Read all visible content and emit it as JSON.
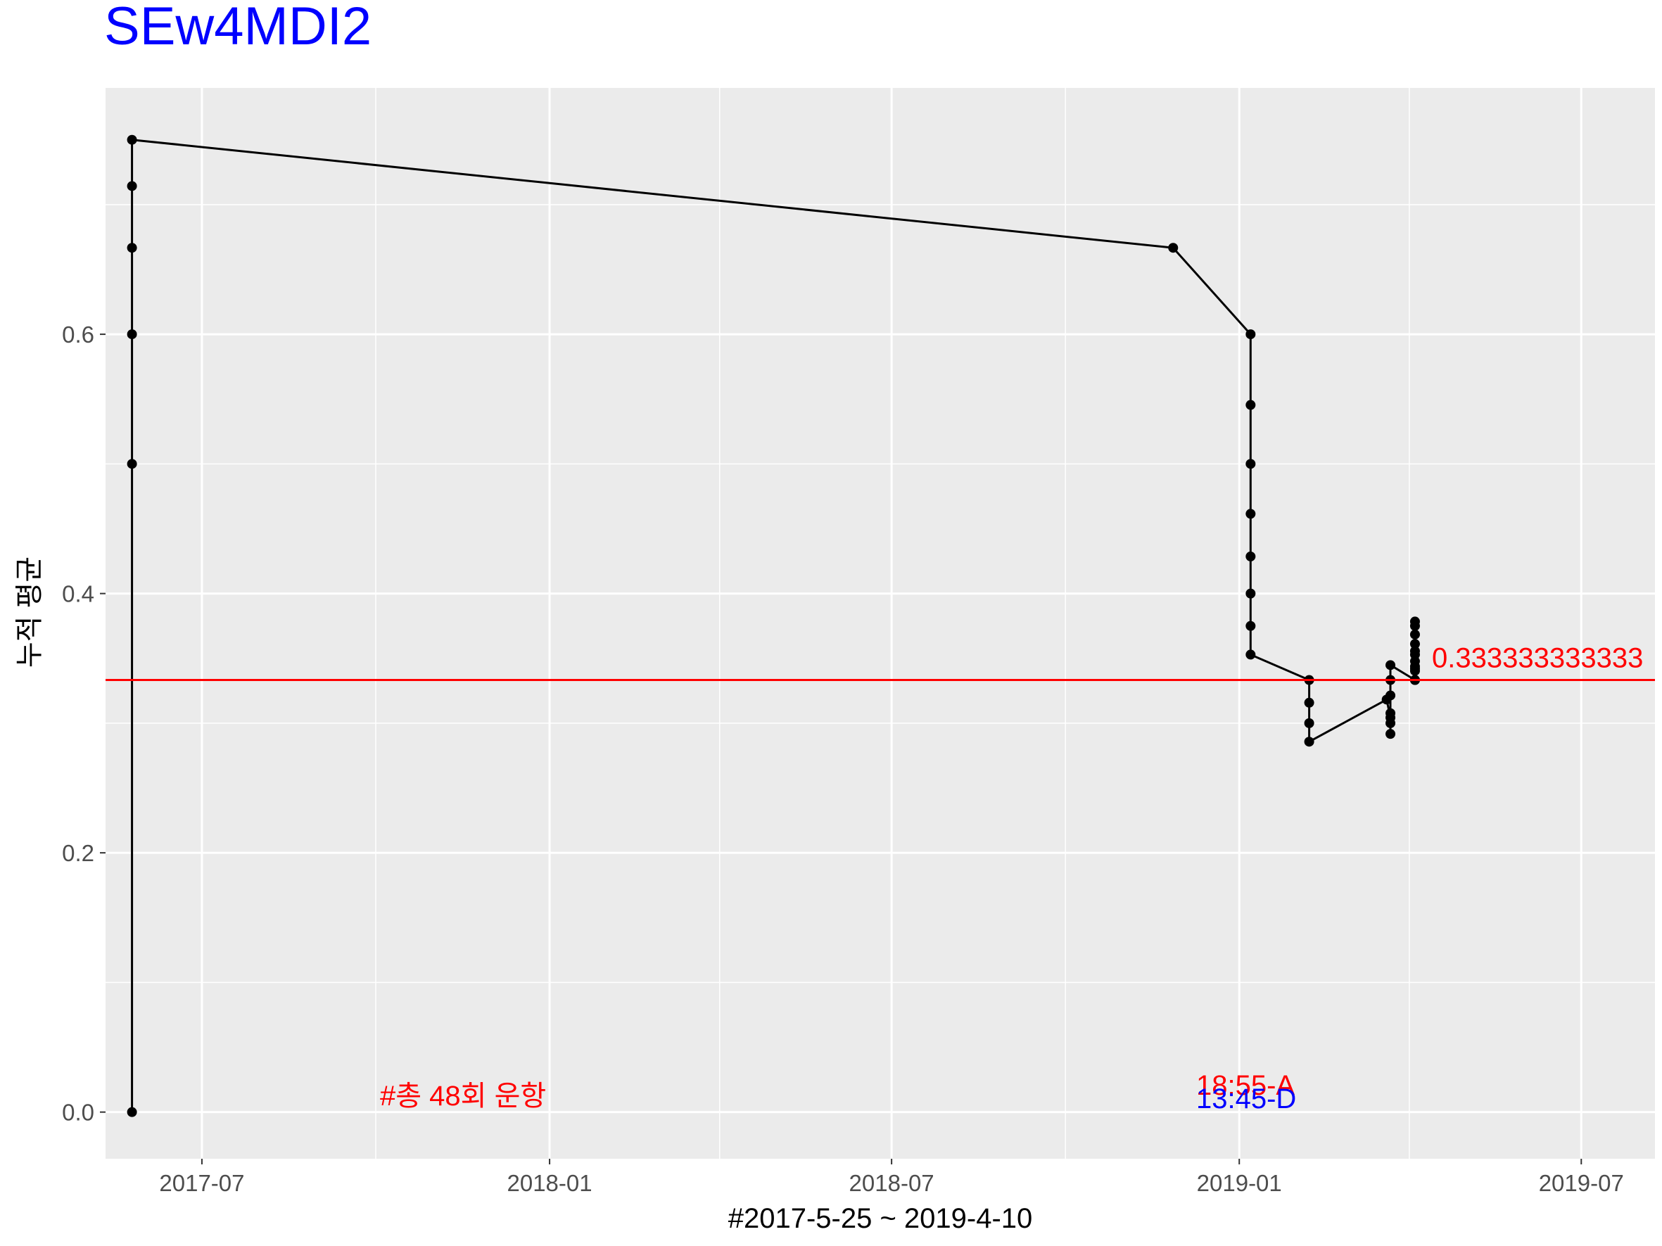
{
  "chart_data": {
    "type": "line",
    "title": "SEw4MDI2",
    "xlabel": "#2017-5-25 ~ 2019-4-10",
    "ylabel": "누적 평균",
    "xlim": [
      "2017-05-11",
      "2019-08-09"
    ],
    "ylim": [
      -0.036,
      0.79
    ],
    "x_ticks": [
      "2017-07-01",
      "2018-01-01",
      "2018-07-01",
      "2019-01-01",
      "2019-07-01"
    ],
    "x_tick_labels": [
      "2017-07",
      "2018-01",
      "2018-07",
      "2019-01",
      "2019-07"
    ],
    "y_ticks": [
      0.0,
      0.2,
      0.4,
      0.6
    ],
    "y_tick_labels": [
      "0.0",
      "0.2",
      "0.4",
      "0.6"
    ],
    "grid": true,
    "series": [
      {
        "color": "#000000",
        "points": [
          {
            "x": "2017-05-25",
            "y": 0.0
          },
          {
            "x": "2017-05-25",
            "y": 0.5
          },
          {
            "x": "2017-05-25",
            "y": 0.6
          },
          {
            "x": "2017-05-25",
            "y": 0.6667
          },
          {
            "x": "2017-05-25",
            "y": 0.7143
          },
          {
            "x": "2017-05-25",
            "y": 0.75
          },
          {
            "x": "2018-11-27",
            "y": 0.6667
          },
          {
            "x": "2019-01-07",
            "y": 0.6
          },
          {
            "x": "2019-01-07",
            "y": 0.5455
          },
          {
            "x": "2019-01-07",
            "y": 0.5
          },
          {
            "x": "2019-01-07",
            "y": 0.4615
          },
          {
            "x": "2019-01-07",
            "y": 0.4286
          },
          {
            "x": "2019-01-07",
            "y": 0.4
          },
          {
            "x": "2019-01-07",
            "y": 0.375
          },
          {
            "x": "2019-01-07",
            "y": 0.3529
          },
          {
            "x": "2019-02-07",
            "y": 0.3333
          },
          {
            "x": "2019-02-07",
            "y": 0.3158
          },
          {
            "x": "2019-02-07",
            "y": 0.3
          },
          {
            "x": "2019-02-07",
            "y": 0.2857
          },
          {
            "x": "2019-03-20",
            "y": 0.3182
          },
          {
            "x": "2019-03-22",
            "y": 0.3043
          },
          {
            "x": "2019-03-22",
            "y": 0.2917
          },
          {
            "x": "2019-03-22",
            "y": 0.3
          },
          {
            "x": "2019-03-22",
            "y": 0.3077
          },
          {
            "x": "2019-03-22",
            "y": 0.3214
          },
          {
            "x": "2019-03-22",
            "y": 0.3333
          },
          {
            "x": "2019-03-22",
            "y": 0.3448
          },
          {
            "x": "2019-04-04",
            "y": 0.3333
          },
          {
            "x": "2019-04-04",
            "y": 0.3438
          },
          {
            "x": "2019-04-04",
            "y": 0.3529
          },
          {
            "x": "2019-04-04",
            "y": 0.3611
          },
          {
            "x": "2019-04-04",
            "y": 0.3684
          },
          {
            "x": "2019-04-04",
            "y": 0.375
          },
          {
            "x": "2019-04-04",
            "y": 0.3784
          },
          {
            "x": "2019-04-04",
            "y": 0.3421
          },
          {
            "x": "2019-04-04",
            "y": 0.3333
          },
          {
            "x": "2019-04-04",
            "y": 0.3556
          },
          {
            "x": "2019-04-04",
            "y": 0.3478
          },
          {
            "x": "2019-04-04",
            "y": 0.3404
          },
          {
            "x": "2019-04-04",
            "y": 0.3333
          }
        ]
      }
    ],
    "reference_line": {
      "y": 0.3333333333,
      "color": "#ff0000",
      "label": "0.333333333333"
    },
    "annotations": [
      {
        "text": "#총 48회 운항",
        "x": "2017-10-01",
        "y": 0.0,
        "color": "#ff0000"
      },
      {
        "text": "18:55-A",
        "x": "2019-01-01",
        "y": 0.01,
        "color": "#ff0000"
      },
      {
        "text": "13:45-D",
        "x": "2019-01-01",
        "y": 0.0,
        "color": "#0000ff"
      }
    ],
    "colors": {
      "panel": "#ebebeb",
      "grid": "#ffffff",
      "line": "#000000",
      "title": "#0000ff"
    }
  }
}
